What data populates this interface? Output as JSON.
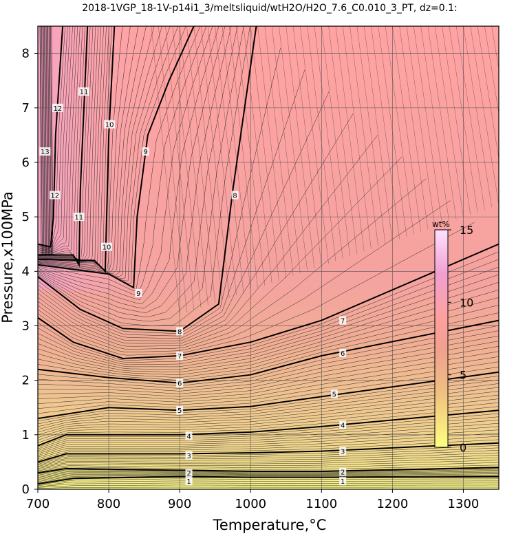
{
  "chart_data": {
    "type": "contour",
    "title": "2018-1VGP_18-1V-p14i1_3/meltsliquid/wtH2O/H2O_7.6_C0.010_3_PT, dz=0.1:",
    "xlabel": "Temperature,°C",
    "ylabel": "Pressure,x100MPa",
    "xlim": [
      700,
      1350
    ],
    "ylim": [
      0,
      8.5
    ],
    "xticks": [
      700,
      800,
      900,
      1000,
      1100,
      1200,
      1300
    ],
    "yticks": [
      0,
      1,
      2,
      3,
      4,
      5,
      6,
      7,
      8
    ],
    "grid": true,
    "colorbar": {
      "label": "wt%",
      "range": [
        0,
        15
      ],
      "ticks": [
        0,
        5,
        10,
        15
      ],
      "colors": [
        "#ffff80",
        "#f0c080",
        "#f0a090",
        "#ffa0a0",
        "#f0a0d0",
        "#ffe0ff"
      ]
    },
    "major_contours": [
      {
        "level": 1,
        "points": [
          [
            700,
            0.1
          ],
          [
            750,
            0.2
          ],
          [
            900,
            0.23
          ],
          [
            1000,
            0.22
          ],
          [
            1100,
            0.22
          ],
          [
            1350,
            0.23
          ]
        ]
      },
      {
        "level": 2,
        "points": [
          [
            700,
            0.3
          ],
          [
            740,
            0.38
          ],
          [
            900,
            0.35
          ],
          [
            1000,
            0.33
          ],
          [
            1100,
            0.33
          ],
          [
            1350,
            0.4
          ]
        ]
      },
      {
        "level": 3,
        "points": [
          [
            700,
            0.5
          ],
          [
            740,
            0.65
          ],
          [
            900,
            0.65
          ],
          [
            1000,
            0.67
          ],
          [
            1100,
            0.7
          ],
          [
            1350,
            0.85
          ]
        ]
      },
      {
        "level": 4,
        "points": [
          [
            700,
            0.8
          ],
          [
            740,
            1.0
          ],
          [
            900,
            1.0
          ],
          [
            1000,
            1.05
          ],
          [
            1100,
            1.15
          ],
          [
            1350,
            1.45
          ]
        ]
      },
      {
        "level": 5,
        "points": [
          [
            700,
            1.3
          ],
          [
            800,
            1.5
          ],
          [
            900,
            1.45
          ],
          [
            1000,
            1.52
          ],
          [
            1100,
            1.7
          ],
          [
            1350,
            2.15
          ]
        ]
      },
      {
        "level": 6,
        "points": [
          [
            700,
            2.2
          ],
          [
            800,
            2.05
          ],
          [
            900,
            1.95
          ],
          [
            1000,
            2.1
          ],
          [
            1100,
            2.45
          ],
          [
            1350,
            3.1
          ]
        ]
      },
      {
        "level": 7,
        "points": [
          [
            700,
            3.15
          ],
          [
            750,
            2.7
          ],
          [
            820,
            2.4
          ],
          [
            900,
            2.45
          ],
          [
            1000,
            2.7
          ],
          [
            1100,
            3.1
          ],
          [
            1350,
            4.5
          ]
        ]
      },
      {
        "level": 8,
        "points": [
          [
            700,
            3.9
          ],
          [
            760,
            3.3
          ],
          [
            820,
            2.95
          ],
          [
            900,
            2.9
          ],
          [
            955,
            3.4
          ],
          [
            975,
            5.5
          ],
          [
            1008,
            8.5
          ]
        ]
      },
      {
        "level": 9,
        "points": [
          [
            700,
            4.12
          ],
          [
            800,
            3.95
          ],
          [
            835,
            3.7
          ],
          [
            840,
            5.0
          ],
          [
            855,
            6.5
          ],
          [
            885,
            7.5
          ],
          [
            920,
            8.5
          ]
        ]
      },
      {
        "level": 10,
        "points": [
          [
            700,
            4.22
          ],
          [
            780,
            4.2
          ],
          [
            795,
            4.0
          ],
          [
            797,
            5.0
          ],
          [
            800,
            6.5
          ],
          [
            808,
            8.5
          ]
        ]
      },
      {
        "level": 11,
        "points": [
          [
            700,
            4.3
          ],
          [
            750,
            4.3
          ],
          [
            758,
            4.12
          ],
          [
            760,
            5.5
          ],
          [
            765,
            7.0
          ],
          [
            770,
            8.5
          ]
        ]
      },
      {
        "level": 12,
        "points": [
          [
            700,
            4.5
          ],
          [
            718,
            4.45
          ],
          [
            722,
            5.0
          ],
          [
            725,
            6.5
          ],
          [
            735,
            8.5
          ]
        ]
      }
    ],
    "contour_labels": [
      {
        "text": "1",
        "x": 913,
        "y": 0.15
      },
      {
        "text": "1",
        "x": 1130,
        "y": 0.15
      },
      {
        "text": "2",
        "x": 913,
        "y": 0.3
      },
      {
        "text": "2",
        "x": 1130,
        "y": 0.32
      },
      {
        "text": "3",
        "x": 913,
        "y": 0.62
      },
      {
        "text": "3",
        "x": 1130,
        "y": 0.7
      },
      {
        "text": "4",
        "x": 913,
        "y": 0.98
      },
      {
        "text": "4",
        "x": 1130,
        "y": 1.18
      },
      {
        "text": "5",
        "x": 900,
        "y": 1.45
      },
      {
        "text": "5",
        "x": 1118,
        "y": 1.75
      },
      {
        "text": "6",
        "x": 900,
        "y": 1.95
      },
      {
        "text": "6",
        "x": 1130,
        "y": 2.5
      },
      {
        "text": "7",
        "x": 900,
        "y": 2.45
      },
      {
        "text": "7",
        "x": 1130,
        "y": 3.1
      },
      {
        "text": "8",
        "x": 900,
        "y": 2.9
      },
      {
        "text": "8",
        "x": 978,
        "y": 5.4
      },
      {
        "text": "9",
        "x": 842,
        "y": 3.6
      },
      {
        "text": "9",
        "x": 852,
        "y": 6.2
      },
      {
        "text": "10",
        "x": 797,
        "y": 4.45
      },
      {
        "text": "10",
        "x": 801,
        "y": 6.7
      },
      {
        "text": "11",
        "x": 758,
        "y": 5.0
      },
      {
        "text": "11",
        "x": 765,
        "y": 7.3
      },
      {
        "text": "12",
        "x": 724,
        "y": 5.4
      },
      {
        "text": "12",
        "x": 728,
        "y": 7.0
      },
      {
        "text": "13",
        "x": 710,
        "y": 6.2
      }
    ]
  }
}
